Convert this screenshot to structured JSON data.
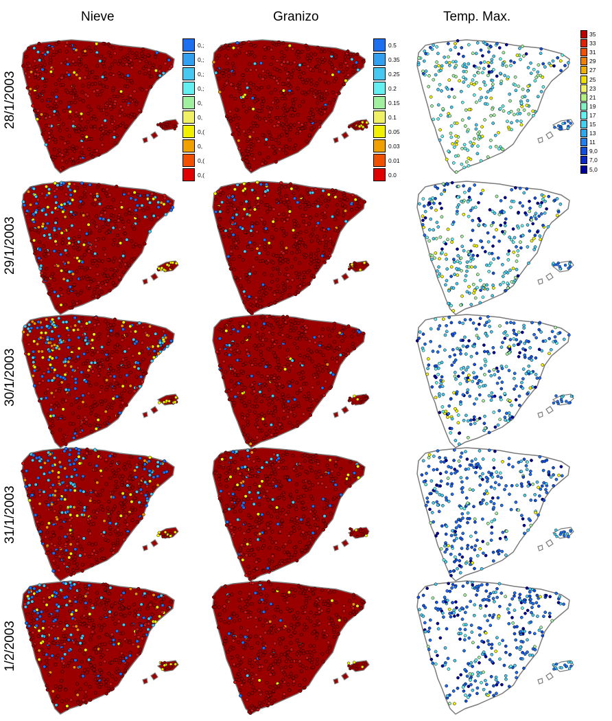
{
  "columns": [
    "Nieve",
    "Granizo",
    "Temp. Max."
  ],
  "rows": [
    "28/1/2003",
    "29/1/2003",
    "30/1/2003",
    "31/1/2003",
    "1/2/2003"
  ],
  "legends": {
    "nieve": {
      "labels": [
        "0,;",
        "0,;",
        "0,;",
        "0,;",
        "0,",
        "0,",
        "0,(",
        "0,",
        "0,(",
        "0,("
      ],
      "colors": [
        "#1e6ff0",
        "#32a0f0",
        "#46c8f0",
        "#64f0f0",
        "#a0f0a0",
        "#f0f064",
        "#f0f000",
        "#f0a000",
        "#f05000",
        "#e00000"
      ]
    },
    "granizo": {
      "labels": [
        "0.5",
        "0.35",
        "0.25",
        "0.2",
        "0.15",
        "0.1",
        "0.05",
        "0.03",
        "0.01",
        "0.0"
      ],
      "colors": [
        "#1e6ff0",
        "#32a0f0",
        "#46c8f0",
        "#64f0f0",
        "#a0f0a0",
        "#f0f064",
        "#f0f000",
        "#f0a000",
        "#f05000",
        "#e00000"
      ]
    },
    "temp": {
      "labels": [
        "35",
        "33",
        "31",
        "29",
        "27",
        "25",
        "23",
        "21",
        "19",
        "17",
        "15",
        "13",
        "11",
        "9,0",
        "7,0",
        "5,0"
      ],
      "colors": [
        "#c00000",
        "#e02000",
        "#f05000",
        "#f08000",
        "#f0b000",
        "#f0e000",
        "#f0f064",
        "#b0f080",
        "#80f0c0",
        "#64f0f0",
        "#40d0f0",
        "#30a8f0",
        "#2080f0",
        "#1050e0",
        "#0828c8",
        "#0000a0"
      ]
    }
  },
  "map_colors": {
    "dark_red": "#9a0000",
    "red": "#c81414",
    "orange": "#f08c00",
    "yellow": "#f0f000",
    "light_blue": "#46c8f0",
    "blue": "#1e6ff0",
    "cyan": "#64f0f0",
    "navy": "#0000a0",
    "outline": "#7a7a7a"
  },
  "snow_intensity": [
    0.25,
    0.75,
    0.9,
    0.85,
    0.55
  ],
  "hail_intensity": [
    0.1,
    0.3,
    0.28,
    0.32,
    0.15
  ],
  "temp_coldness": [
    0.2,
    0.55,
    0.7,
    0.85,
    0.8
  ]
}
